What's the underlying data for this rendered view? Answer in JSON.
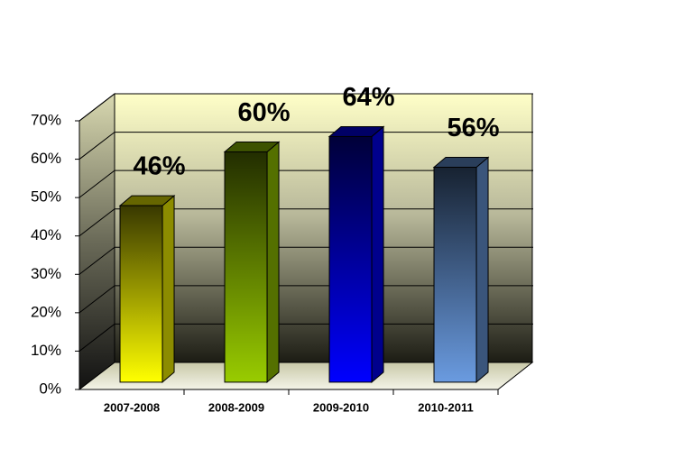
{
  "chart_data": {
    "type": "bar3d",
    "categories": [
      "2007-2008",
      "2008-2009",
      "2009-2010",
      "2010-2011"
    ],
    "values": [
      46,
      60,
      64,
      56
    ],
    "value_labels": [
      "46%",
      "60%",
      "64%",
      "56%"
    ],
    "colors": [
      "#ffff00",
      "#99cc00",
      "#0000ff",
      "#6a9be0"
    ],
    "ylim": [
      0,
      70
    ],
    "yticks": [
      {
        "value": 0,
        "label": "0%"
      },
      {
        "value": 10,
        "label": "10%"
      },
      {
        "value": 20,
        "label": "20%"
      },
      {
        "value": 30,
        "label": "30%"
      },
      {
        "value": 40,
        "label": "40%"
      },
      {
        "value": 50,
        "label": "50%"
      },
      {
        "value": 60,
        "label": "60%"
      },
      {
        "value": 70,
        "label": "70%"
      }
    ],
    "grid": true
  }
}
